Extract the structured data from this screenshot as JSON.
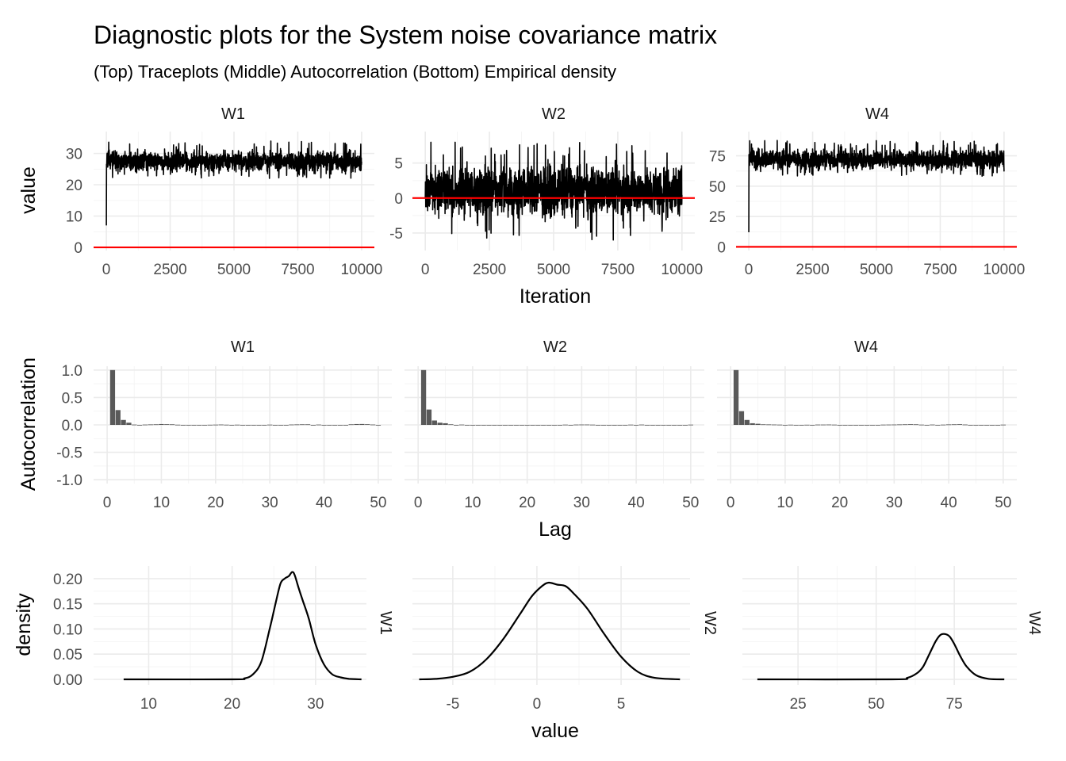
{
  "title": "Diagnostic plots for the System noise covariance matrix",
  "subtitle": "(Top) Traceplots (Middle) Autocorrelation (Bottom) Empirical density",
  "colors": {
    "line": "#000000",
    "reference_line": "#ff0000",
    "bar": "#595959",
    "grid": "#ebebeb"
  },
  "chart_data": [
    {
      "type": "line",
      "row": "Traceplots",
      "xlabel": "Iteration",
      "ylabel": "value",
      "reference_line": {
        "y": 0,
        "color": "#ff0000"
      },
      "panels": [
        {
          "name": "W1",
          "x_ticks": [
            0,
            2500,
            5000,
            7500,
            10000
          ],
          "y_ticks": [
            0,
            10,
            20,
            30
          ],
          "xlim": [
            -500,
            10500
          ],
          "ylim": [
            -1,
            37
          ],
          "start": 7,
          "mean": 27.5,
          "low": 22,
          "high": 34
        },
        {
          "name": "W2",
          "x_ticks": [
            0,
            2500,
            5000,
            7500,
            10000
          ],
          "y_ticks": [
            -5,
            0,
            5
          ],
          "xlim": [
            -500,
            10500
          ],
          "ylim": [
            -7.5,
            9.5
          ],
          "start": 0,
          "mean": 1,
          "low": -6,
          "high": 8
        },
        {
          "name": "W4",
          "x_ticks": [
            0,
            2500,
            5000,
            7500,
            10000
          ],
          "y_ticks": [
            0,
            25,
            50,
            75
          ],
          "xlim": [
            -500,
            10500
          ],
          "ylim": [
            -3,
            95
          ],
          "start": 12,
          "mean": 72,
          "low": 58,
          "high": 88
        }
      ]
    },
    {
      "type": "bar",
      "row": "Autocorrelation",
      "xlabel": "Lag",
      "ylabel": "Autocorrelation",
      "panels": [
        {
          "name": "W1",
          "x_ticks": [
            0,
            10,
            20,
            30,
            40,
            50
          ],
          "y_ticks": [
            -1.0,
            -0.5,
            0.0,
            0.5,
            1.0
          ],
          "xlim": [
            -2.5,
            52.5
          ],
          "ylim": [
            -1.07,
            1.07
          ],
          "lags": [
            1,
            2,
            3,
            4,
            5,
            6,
            7,
            8,
            9,
            10,
            11,
            12,
            13,
            14,
            15,
            16,
            17,
            18,
            19,
            20,
            21,
            22,
            23,
            24,
            25,
            26,
            27,
            28,
            29,
            30,
            31,
            32,
            33,
            34,
            35,
            36,
            37,
            38,
            39,
            40,
            41,
            42,
            43,
            44,
            45,
            46,
            47,
            48,
            49,
            50
          ],
          "values": [
            1.0,
            0.27,
            0.09,
            0.04,
            0.005,
            0.0,
            0.005,
            0.008,
            0.01,
            0.015,
            0.012,
            0.01,
            0.003,
            0.0,
            -0.002,
            0.0,
            0.0,
            0.0,
            0.002,
            0.004,
            0.006,
            0.003,
            -0.004,
            0.003,
            0.0,
            -0.003,
            0.0,
            0.0,
            0.0,
            0.004,
            0.0,
            0.0,
            -0.004,
            0.006,
            0.008,
            0.01,
            0.01,
            0.0,
            0.005,
            0.0,
            0.0,
            0.0,
            0.0,
            0.0,
            0.01,
            0.015,
            0.016,
            0.012,
            0.006,
            0.0
          ]
        },
        {
          "name": "W2",
          "x_ticks": [
            0,
            10,
            20,
            30,
            40,
            50
          ],
          "y_ticks": [
            -1.0,
            -0.5,
            0.0,
            0.5,
            1.0
          ],
          "xlim": [
            -2.5,
            52.5
          ],
          "ylim": [
            -1.07,
            1.07
          ],
          "lags": [
            1,
            2,
            3,
            4,
            5,
            6,
            7,
            8,
            9,
            10,
            11,
            12,
            13,
            14,
            15,
            16,
            17,
            18,
            19,
            20,
            21,
            22,
            23,
            24,
            25,
            26,
            27,
            28,
            29,
            30,
            31,
            32,
            33,
            34,
            35,
            36,
            37,
            38,
            39,
            40,
            41,
            42,
            43,
            44,
            45,
            46,
            47,
            48,
            49,
            50
          ],
          "values": [
            1.0,
            0.28,
            0.08,
            0.04,
            0.03,
            0.01,
            0.0,
            0.005,
            0.0,
            -0.004,
            0.0,
            0.0,
            0.0,
            0.0,
            0.0,
            0.0,
            0.0,
            0.0,
            0.0,
            0.0,
            -0.003,
            0.0,
            0.0,
            0.0,
            0.0,
            0.0,
            0.004,
            0.0,
            0.005,
            0.006,
            0.006,
            0.004,
            0.0,
            0.0,
            -0.008,
            -0.012,
            -0.01,
            -0.006,
            0.004,
            0.0,
            0.005,
            0.0,
            0.0,
            0.0,
            0.0,
            0.0,
            0.0,
            0.0,
            0.0,
            0.004
          ]
        },
        {
          "name": "W4",
          "x_ticks": [
            0,
            10,
            20,
            30,
            40,
            50
          ],
          "y_ticks": [
            -1.0,
            -0.5,
            0.0,
            0.5,
            1.0
          ],
          "xlim": [
            -2.5,
            52.5
          ],
          "ylim": [
            -1.07,
            1.07
          ],
          "lags": [
            1,
            2,
            3,
            4,
            5,
            6,
            7,
            8,
            9,
            10,
            11,
            12,
            13,
            14,
            15,
            16,
            17,
            18,
            19,
            20,
            21,
            22,
            23,
            24,
            25,
            26,
            27,
            28,
            29,
            30,
            31,
            32,
            33,
            34,
            35,
            36,
            37,
            38,
            39,
            40,
            41,
            42,
            43,
            44,
            45,
            46,
            47,
            48,
            49,
            50
          ],
          "values": [
            1.0,
            0.25,
            0.09,
            0.03,
            0.02,
            0.01,
            0.008,
            0.006,
            0.004,
            0.0,
            0.003,
            0.0,
            0.0,
            0.002,
            0.0,
            0.005,
            0.005,
            0.006,
            0.004,
            0.0,
            0.0,
            -0.003,
            -0.004,
            -0.006,
            0.0,
            0.0,
            0.0,
            0.004,
            0.005,
            0.006,
            0.008,
            0.01,
            0.012,
            0.01,
            0.004,
            0.0,
            0.005,
            0.0,
            0.004,
            0.008,
            0.01,
            0.012,
            0.006,
            0.0,
            0.0,
            0.0,
            -0.004,
            0.0,
            0.0,
            0.004
          ]
        }
      ]
    },
    {
      "type": "area",
      "row": "Empirical density",
      "xlabel": "value",
      "ylabel": "density",
      "y_ticks": [
        0.0,
        0.05,
        0.1,
        0.15,
        0.2
      ],
      "panels": [
        {
          "name": "W1",
          "x_ticks": [
            10,
            20,
            30
          ],
          "xlim": [
            3.4,
            36.1
          ],
          "ylim": [
            -0.011,
            0.225
          ],
          "x": [
            7,
            20,
            21.5,
            22.5,
            23.5,
            24.5,
            25.2,
            25.8,
            26.3,
            26.8,
            27.2,
            27.5,
            28.0,
            28.5,
            29.2,
            30.0,
            31.0,
            32.0,
            33.0,
            34.0,
            35.5
          ],
          "y": [
            0.0,
            0.0,
            0.002,
            0.01,
            0.035,
            0.1,
            0.15,
            0.19,
            0.2,
            0.205,
            0.213,
            0.207,
            0.18,
            0.155,
            0.12,
            0.07,
            0.03,
            0.01,
            0.004,
            0.001,
            0.0
          ]
        },
        {
          "name": "W2",
          "x_ticks": [
            -5,
            0,
            5
          ],
          "xlim": [
            -7.4,
            9.1
          ],
          "ylim": [
            -0.011,
            0.225
          ],
          "x": [
            -7,
            -6,
            -5,
            -4,
            -3,
            -2,
            -1,
            -0.3,
            0.3,
            0.7,
            1.2,
            1.7,
            2.2,
            3,
            4,
            5,
            6,
            7,
            8.5
          ],
          "y": [
            0.0,
            0.001,
            0.005,
            0.015,
            0.04,
            0.08,
            0.13,
            0.165,
            0.185,
            0.192,
            0.188,
            0.185,
            0.17,
            0.14,
            0.09,
            0.045,
            0.015,
            0.003,
            0.0
          ]
        },
        {
          "name": "W4",
          "x_ticks": [
            25,
            50,
            75
          ],
          "xlim": [
            7.2,
            95.0
          ],
          "ylim": [
            -0.011,
            0.225
          ],
          "x": [
            12,
            55,
            60,
            63,
            65,
            67,
            69,
            70.5,
            72,
            73.5,
            75,
            77,
            79,
            82,
            86,
            91
          ],
          "y": [
            0.0,
            0.0,
            0.003,
            0.012,
            0.025,
            0.05,
            0.075,
            0.088,
            0.09,
            0.085,
            0.07,
            0.045,
            0.025,
            0.008,
            0.001,
            0.0
          ]
        }
      ]
    }
  ]
}
